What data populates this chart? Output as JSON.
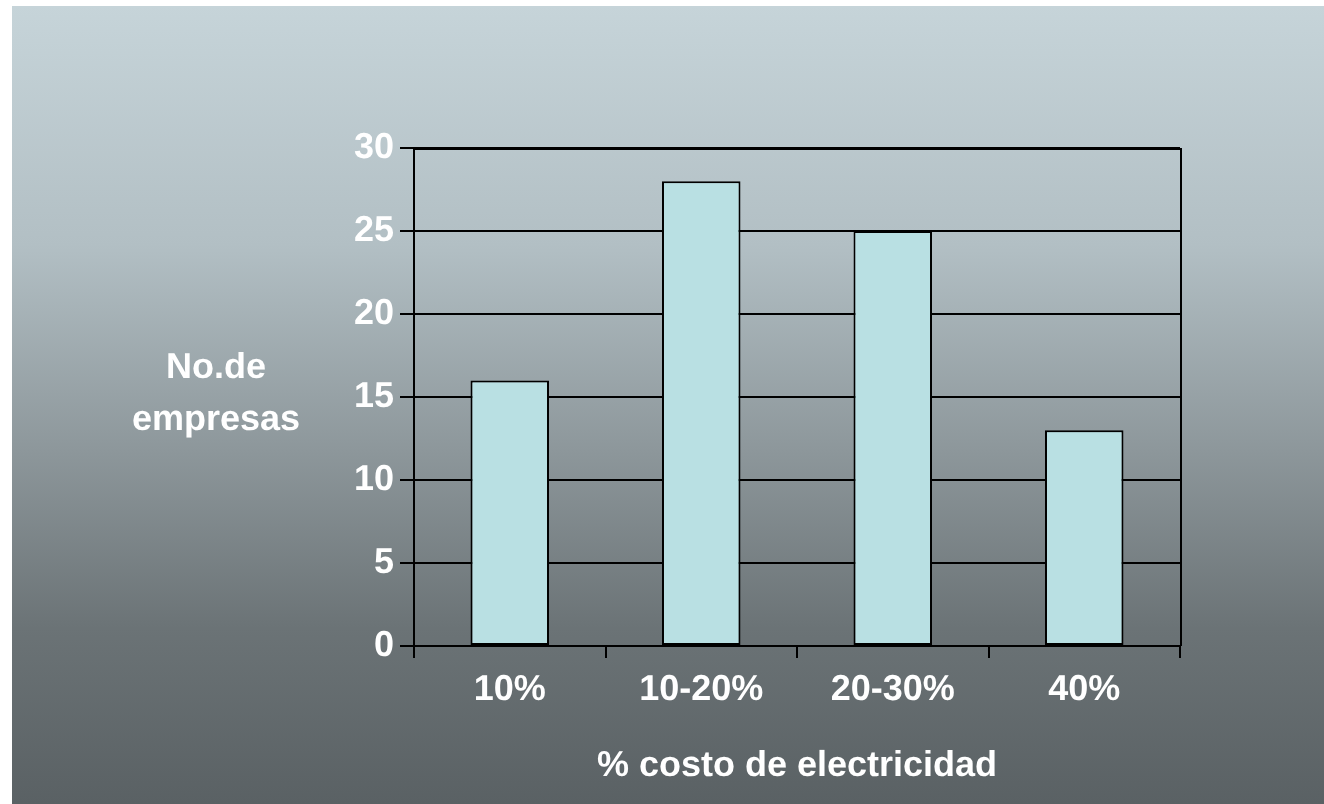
{
  "chart_data": {
    "type": "bar",
    "categories": [
      "10%",
      "10-20%",
      "20-30%",
      "40%"
    ],
    "values": [
      16,
      28,
      25,
      13
    ],
    "color": "#b9e0e3",
    "xlabel": "% costo de electricidad",
    "ylabel": "No.de empresas",
    "ylim": [
      0,
      30
    ],
    "yticks": [
      0,
      5,
      10,
      15,
      20,
      25,
      30
    ],
    "grid": "y"
  }
}
